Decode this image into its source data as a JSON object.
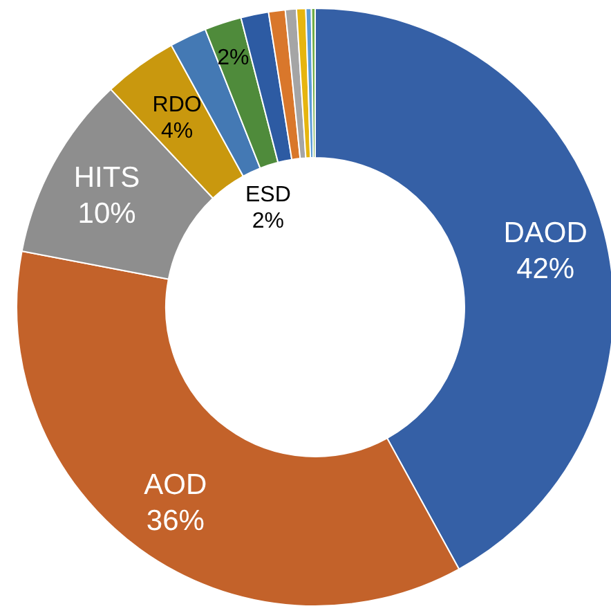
{
  "chart_data": {
    "type": "donut",
    "categories": [
      "DAOD",
      "AOD",
      "HITS",
      "RDO",
      "ESD",
      null,
      null,
      null,
      null,
      null,
      null,
      null
    ],
    "values": [
      42,
      36,
      10,
      4,
      2,
      2,
      1.5,
      0.9,
      0.6,
      0.5,
      0.3,
      0.2
    ],
    "value_labels": [
      "42%",
      "36%",
      "10%",
      "4%",
      "2%",
      "2%",
      null,
      null,
      null,
      null,
      null,
      null
    ],
    "colors": [
      "#3560a6",
      "#c3622a",
      "#8e8e8e",
      "#c9980e",
      "#4479b4",
      "#4f8b3b",
      "#2d5ba3",
      "#d9772b",
      "#a5a5a5",
      "#e6b50f",
      "#5b9bd5",
      "#70ad47"
    ]
  }
}
